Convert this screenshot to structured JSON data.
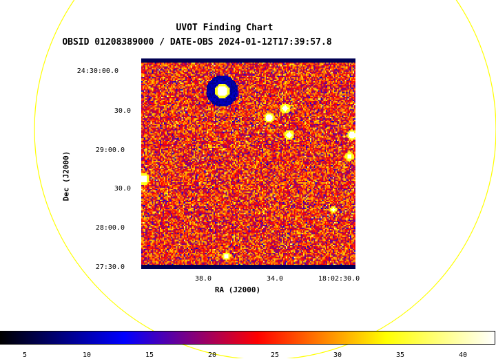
{
  "title": "UVOT Finding Chart",
  "subtitle": "OBSID 01208389000 / DATE-OBS 2024-01-12T17:39:57.8",
  "axes": {
    "xlabel": "RA (J2000)",
    "ylabel": "Dec (J2000)",
    "ra_ticks": [
      "38.0",
      "34.0",
      "18:02:30.0"
    ],
    "dec_ticks": [
      "24:30:00.0",
      "30.0",
      "29:00.0",
      "30.0",
      "28:00.0",
      "27:30.0"
    ]
  },
  "colorbar": {
    "labels": [
      "5",
      "10",
      "15",
      "20",
      "25",
      "30",
      "35",
      "40"
    ],
    "colors": [
      "#000000",
      "#0000ff",
      "#ff0000",
      "#ffff00",
      "#ffffff"
    ]
  },
  "overlay": {
    "circle_color": "#ffff00"
  }
}
